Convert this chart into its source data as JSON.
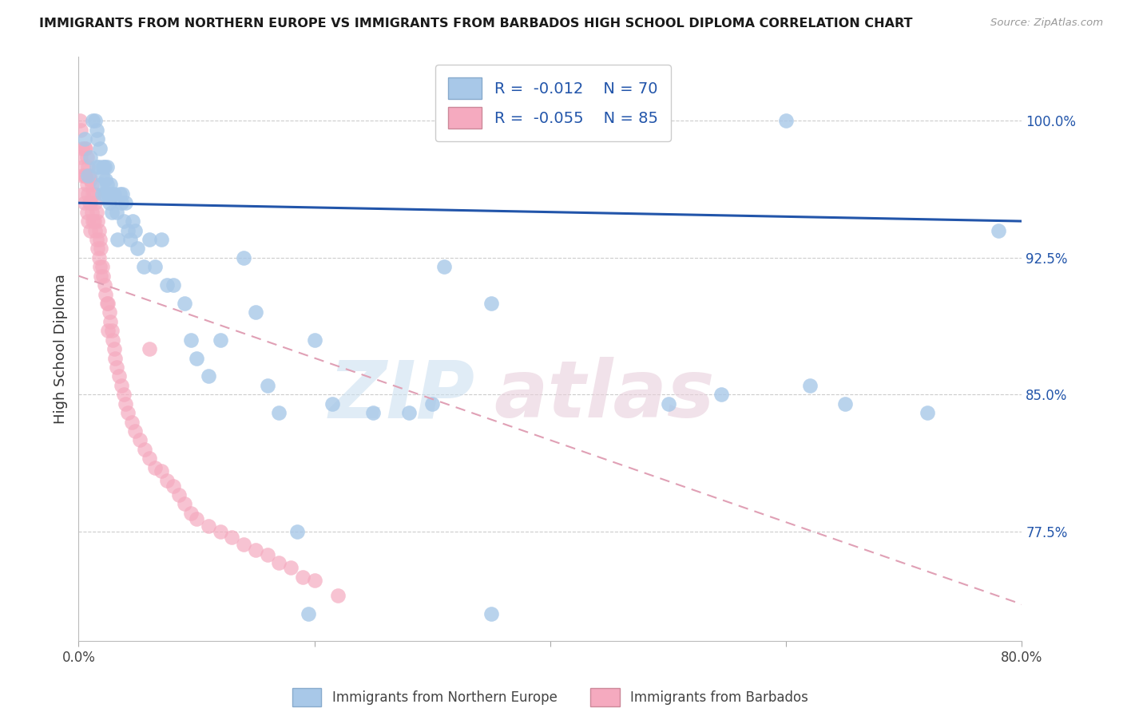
{
  "title": "IMMIGRANTS FROM NORTHERN EUROPE VS IMMIGRANTS FROM BARBADOS HIGH SCHOOL DIPLOMA CORRELATION CHART",
  "source": "Source: ZipAtlas.com",
  "ylabel": "High School Diploma",
  "xlim": [
    0.0,
    0.8
  ],
  "ylim": [
    0.715,
    1.035
  ],
  "blue_R": "-0.012",
  "blue_N": "70",
  "pink_R": "-0.055",
  "pink_N": "85",
  "blue_color": "#a8c8e8",
  "pink_color": "#f5aabf",
  "blue_line_color": "#2255aa",
  "pink_line_color": "#e07090",
  "pink_dashed_color": "#e0a0b5",
  "y_tick_vals": [
    0.775,
    0.85,
    0.925,
    1.0
  ],
  "y_tick_labels": [
    "77.5%",
    "85.0%",
    "92.5%",
    "100.0%"
  ],
  "blue_line_x0": 0.0,
  "blue_line_x1": 0.8,
  "blue_line_y0": 0.955,
  "blue_line_y1": 0.945,
  "pink_line_x0": 0.0,
  "pink_line_x1": 0.8,
  "pink_line_y0": 0.915,
  "pink_line_y1": 0.735,
  "blue_x": [
    0.005,
    0.008,
    0.01,
    0.012,
    0.014,
    0.015,
    0.015,
    0.016,
    0.017,
    0.018,
    0.019,
    0.02,
    0.02,
    0.021,
    0.022,
    0.022,
    0.023,
    0.024,
    0.024,
    0.025,
    0.026,
    0.027,
    0.028,
    0.028,
    0.03,
    0.032,
    0.033,
    0.035,
    0.036,
    0.037,
    0.038,
    0.04,
    0.042,
    0.044,
    0.046,
    0.048,
    0.05,
    0.055,
    0.06,
    0.065,
    0.07,
    0.075,
    0.08,
    0.09,
    0.095,
    0.1,
    0.11,
    0.12,
    0.14,
    0.15,
    0.16,
    0.17,
    0.185,
    0.195,
    0.2,
    0.215,
    0.25,
    0.28,
    0.3,
    0.31,
    0.35,
    0.42,
    0.5,
    0.545,
    0.6,
    0.65,
    0.72,
    0.78,
    0.62,
    0.35
  ],
  "blue_y": [
    0.99,
    0.97,
    0.98,
    1.0,
    1.0,
    0.995,
    0.975,
    0.99,
    0.975,
    0.985,
    0.965,
    0.97,
    0.96,
    0.975,
    0.96,
    0.975,
    0.968,
    0.965,
    0.975,
    0.96,
    0.955,
    0.965,
    0.96,
    0.95,
    0.96,
    0.95,
    0.935,
    0.96,
    0.955,
    0.96,
    0.945,
    0.955,
    0.94,
    0.935,
    0.945,
    0.94,
    0.93,
    0.92,
    0.935,
    0.92,
    0.935,
    0.91,
    0.91,
    0.9,
    0.88,
    0.87,
    0.86,
    0.88,
    0.925,
    0.895,
    0.855,
    0.84,
    0.775,
    0.73,
    0.88,
    0.845,
    0.84,
    0.84,
    0.845,
    0.92,
    0.73,
    1.0,
    0.845,
    0.85,
    1.0,
    0.845,
    0.84,
    0.94,
    0.855,
    0.9
  ],
  "pink_x": [
    0.001,
    0.002,
    0.002,
    0.003,
    0.003,
    0.004,
    0.004,
    0.005,
    0.005,
    0.005,
    0.006,
    0.006,
    0.007,
    0.007,
    0.007,
    0.008,
    0.008,
    0.008,
    0.009,
    0.009,
    0.01,
    0.01,
    0.01,
    0.011,
    0.011,
    0.012,
    0.012,
    0.013,
    0.013,
    0.014,
    0.014,
    0.015,
    0.015,
    0.016,
    0.016,
    0.017,
    0.017,
    0.018,
    0.018,
    0.019,
    0.019,
    0.02,
    0.021,
    0.022,
    0.023,
    0.024,
    0.025,
    0.025,
    0.026,
    0.027,
    0.028,
    0.029,
    0.03,
    0.031,
    0.032,
    0.034,
    0.036,
    0.038,
    0.04,
    0.042,
    0.045,
    0.048,
    0.052,
    0.056,
    0.06,
    0.065,
    0.07,
    0.075,
    0.08,
    0.085,
    0.09,
    0.095,
    0.1,
    0.11,
    0.12,
    0.13,
    0.14,
    0.15,
    0.16,
    0.17,
    0.18,
    0.19,
    0.2,
    0.22,
    0.06
  ],
  "pink_y": [
    1.0,
    0.995,
    0.98,
    0.985,
    0.97,
    0.975,
    0.96,
    0.985,
    0.97,
    0.955,
    0.985,
    0.97,
    0.98,
    0.965,
    0.95,
    0.975,
    0.96,
    0.945,
    0.97,
    0.955,
    0.968,
    0.955,
    0.94,
    0.965,
    0.95,
    0.96,
    0.945,
    0.96,
    0.945,
    0.955,
    0.94,
    0.95,
    0.935,
    0.945,
    0.93,
    0.94,
    0.925,
    0.935,
    0.92,
    0.93,
    0.915,
    0.92,
    0.915,
    0.91,
    0.905,
    0.9,
    0.9,
    0.885,
    0.895,
    0.89,
    0.885,
    0.88,
    0.875,
    0.87,
    0.865,
    0.86,
    0.855,
    0.85,
    0.845,
    0.84,
    0.835,
    0.83,
    0.825,
    0.82,
    0.815,
    0.81,
    0.808,
    0.803,
    0.8,
    0.795,
    0.79,
    0.785,
    0.782,
    0.778,
    0.775,
    0.772,
    0.768,
    0.765,
    0.762,
    0.758,
    0.755,
    0.75,
    0.748,
    0.74,
    0.875
  ]
}
